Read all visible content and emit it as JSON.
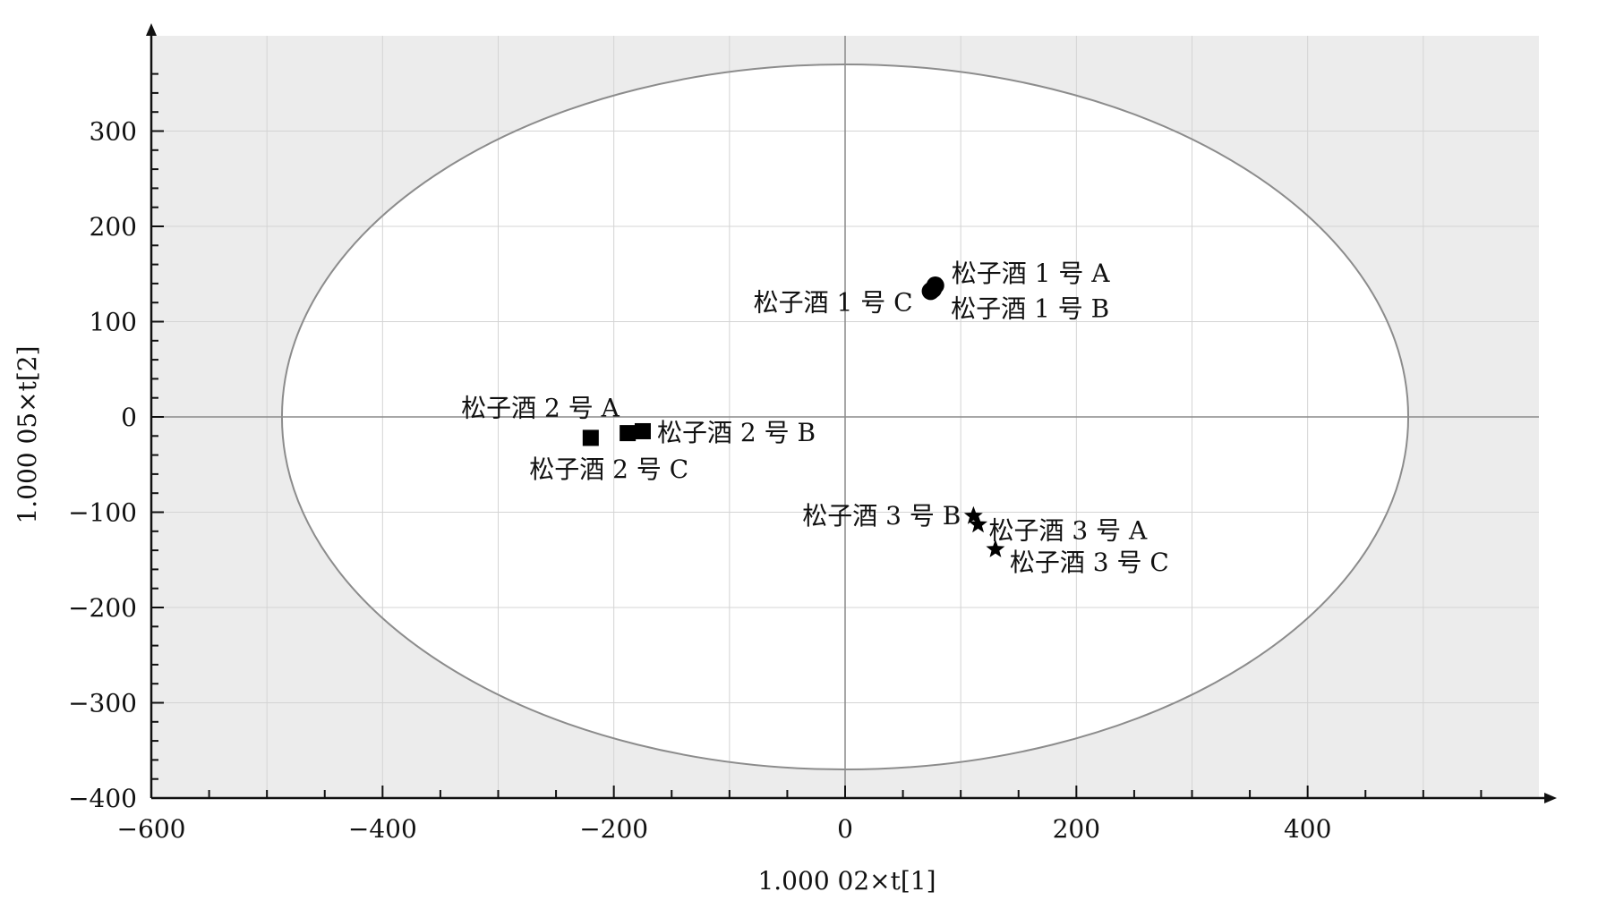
{
  "chart_data": {
    "type": "scatter",
    "title": "",
    "xlabel": "1.000 02×t[1]",
    "ylabel": "1.000 05×t[2]",
    "xlim": [
      -600,
      600
    ],
    "ylim": [
      -400,
      400
    ],
    "x_ticks": [
      -600,
      -400,
      -200,
      0,
      200,
      400
    ],
    "x_tick_labels": [
      "−600",
      "−400",
      "−200",
      "0",
      "200",
      "400"
    ],
    "y_ticks": [
      -400,
      -300,
      -200,
      -100,
      0,
      100,
      200,
      300
    ],
    "y_tick_labels": [
      "−400",
      "−300",
      "−200",
      "−100",
      "0",
      "100",
      "200",
      "300"
    ],
    "grid": true,
    "ellipse": {
      "rx": 487,
      "ry": 370
    },
    "colors": {
      "background": "#ececec",
      "inside": "#ffffff",
      "grid": "#d4d4d4",
      "ellipse": "#8c8c8c",
      "axis": "#111111",
      "marker": "#000000"
    },
    "series": [
      {
        "marker": "circle",
        "points": [
          {
            "x": 78,
            "y": 138,
            "label": "松子酒 1 号 A"
          },
          {
            "x": 76,
            "y": 134,
            "label": "松子酒 1 号 B"
          },
          {
            "x": 74,
            "y": 132,
            "label": "松子酒 1 号 C"
          }
        ]
      },
      {
        "marker": "square",
        "points": [
          {
            "x": -220,
            "y": -22,
            "label": "松子酒 2 号 A"
          },
          {
            "x": -175,
            "y": -15,
            "label": "松子酒 2 号 B"
          },
          {
            "x": -188,
            "y": -17,
            "label": "松子酒 2 号 C"
          }
        ]
      },
      {
        "marker": "star",
        "points": [
          {
            "x": 115,
            "y": -113,
            "label": "松子酒 3 号 A"
          },
          {
            "x": 111,
            "y": -104,
            "label": "松子酒 3 号 B"
          },
          {
            "x": 130,
            "y": -139,
            "label": "松子酒 3 号 C"
          }
        ]
      }
    ]
  }
}
